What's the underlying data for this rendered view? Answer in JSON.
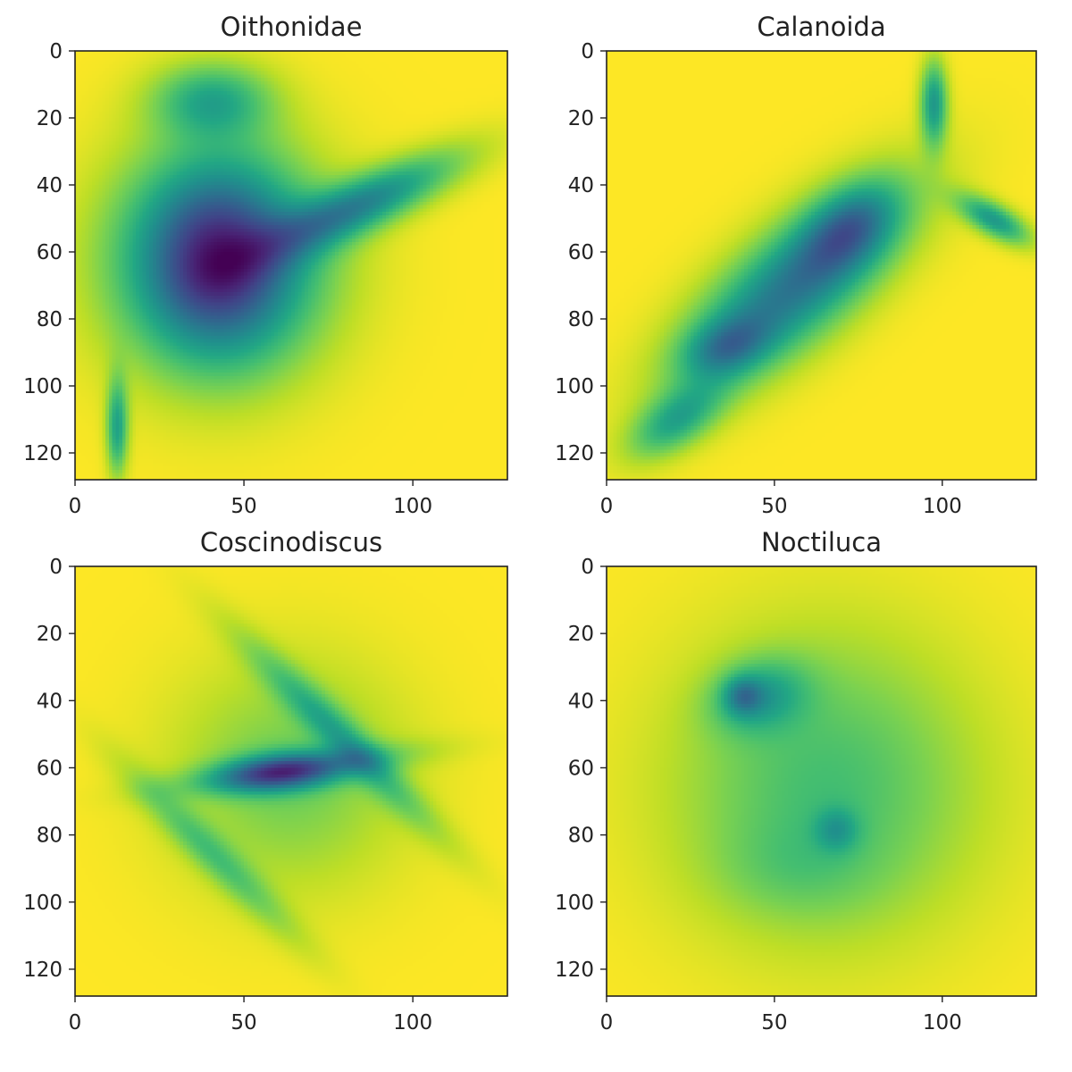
{
  "chart_data": [
    {
      "type": "heatmap",
      "title": "Oithonidae",
      "colormap": "viridis",
      "image_size": [
        128,
        128
      ],
      "xlim": [
        0,
        128
      ],
      "ylim": [
        128,
        0
      ],
      "xticks": [
        0,
        50,
        100
      ],
      "yticks": [
        0,
        20,
        40,
        60,
        80,
        100,
        120
      ],
      "background_value": 1.0,
      "blobs": [
        {
          "cx": 42,
          "cy": 62,
          "rx": 40,
          "ry": 42,
          "rot": 0,
          "depth": 0.6
        },
        {
          "cx": 42,
          "cy": 62,
          "rx": 26,
          "ry": 34,
          "rot": 0,
          "depth": 0.35
        },
        {
          "cx": 85,
          "cy": 45,
          "rx": 40,
          "ry": 10,
          "rot": -25,
          "depth": 0.5
        },
        {
          "cx": 40,
          "cy": 14,
          "rx": 22,
          "ry": 14,
          "rot": 0,
          "depth": 0.35
        },
        {
          "cx": 12,
          "cy": 112,
          "rx": 4,
          "ry": 18,
          "rot": 0,
          "depth": 0.4
        }
      ]
    },
    {
      "type": "heatmap",
      "title": "Calanoida",
      "colormap": "viridis",
      "image_size": [
        128,
        128
      ],
      "xlim": [
        0,
        128
      ],
      "ylim": [
        128,
        0
      ],
      "xticks": [
        0,
        50,
        100
      ],
      "yticks": [
        0,
        20,
        40,
        60,
        80,
        100,
        120
      ],
      "background_value": 1.0,
      "blobs": [
        {
          "cx": 55,
          "cy": 70,
          "rx": 52,
          "ry": 20,
          "rot": -40,
          "depth": 0.6
        },
        {
          "cx": 72,
          "cy": 52,
          "rx": 20,
          "ry": 13,
          "rot": -40,
          "depth": 0.35
        },
        {
          "cx": 35,
          "cy": 88,
          "rx": 16,
          "ry": 10,
          "rot": -20,
          "depth": 0.3
        },
        {
          "cx": 20,
          "cy": 110,
          "rx": 20,
          "ry": 10,
          "rot": -35,
          "depth": 0.35
        },
        {
          "cx": 97,
          "cy": 15,
          "rx": 5,
          "ry": 16,
          "rot": 0,
          "depth": 0.45
        },
        {
          "cx": 115,
          "cy": 50,
          "rx": 15,
          "ry": 6,
          "rot": 30,
          "depth": 0.45
        }
      ]
    },
    {
      "type": "heatmap",
      "title": "Coscinodiscus",
      "colormap": "viridis",
      "image_size": [
        128,
        128
      ],
      "xlim": [
        0,
        128
      ],
      "ylim": [
        128,
        0
      ],
      "xticks": [
        0,
        50,
        100
      ],
      "yticks": [
        0,
        20,
        40,
        60,
        80,
        100,
        120
      ],
      "background_value": 1.0,
      "blobs": [
        {
          "cx": 63,
          "cy": 62,
          "rx": 44,
          "ry": 44,
          "rot": 45,
          "depth": 0.22
        },
        {
          "cx": 78,
          "cy": 50,
          "rx": 52,
          "ry": 7,
          "rot": 45,
          "depth": 0.28
        },
        {
          "cx": 40,
          "cy": 85,
          "rx": 45,
          "ry": 7,
          "rot": 45,
          "depth": 0.22
        },
        {
          "cx": 65,
          "cy": 60,
          "rx": 45,
          "ry": 6,
          "rot": -8,
          "depth": 0.25
        },
        {
          "cx": 60,
          "cy": 61,
          "rx": 22,
          "ry": 7,
          "rot": -5,
          "depth": 0.45
        }
      ]
    },
    {
      "type": "heatmap",
      "title": "Noctiluca",
      "colormap": "viridis",
      "image_size": [
        128,
        128
      ],
      "xlim": [
        0,
        128
      ],
      "ylim": [
        128,
        0
      ],
      "xticks": [
        0,
        50,
        100
      ],
      "yticks": [
        0,
        20,
        40,
        60,
        80,
        100,
        120
      ],
      "background_value": 1.0,
      "blobs": [
        {
          "cx": 65,
          "cy": 65,
          "rx": 58,
          "ry": 58,
          "rot": 0,
          "depth": 0.3
        },
        {
          "cx": 45,
          "cy": 38,
          "rx": 18,
          "ry": 13,
          "rot": -15,
          "depth": 0.3
        },
        {
          "cx": 40,
          "cy": 38,
          "rx": 7,
          "ry": 7,
          "rot": 0,
          "depth": 0.25
        },
        {
          "cx": 68,
          "cy": 78,
          "rx": 8,
          "ry": 8,
          "rot": 0,
          "depth": 0.2
        },
        {
          "cx": 55,
          "cy": 90,
          "rx": 30,
          "ry": 18,
          "rot": 0,
          "depth": 0.08
        }
      ]
    }
  ]
}
